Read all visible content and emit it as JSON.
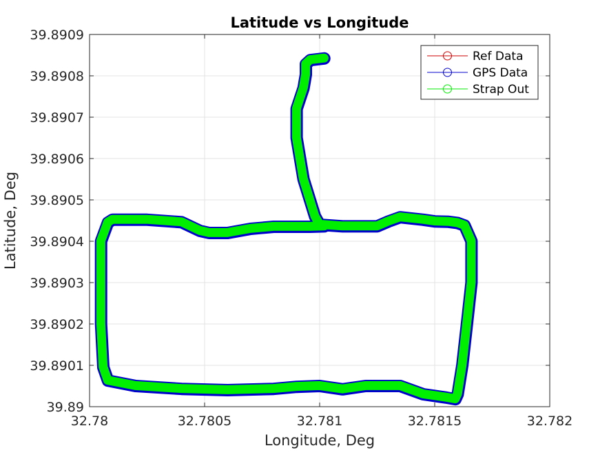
{
  "chart_data": {
    "type": "line",
    "title": "Latitude vs Longitude",
    "xlabel": "Longitude, Deg",
    "ylabel": "Latitude, Deg",
    "xlim": [
      32.78,
      32.782
    ],
    "ylim": [
      39.89,
      39.8909
    ],
    "xticks": [
      32.78,
      32.7805,
      32.781,
      32.7815,
      32.782
    ],
    "xtick_labels": [
      "32.78",
      "32.7805",
      "32.781",
      "32.7815",
      "32.782"
    ],
    "yticks": [
      39.89,
      39.8901,
      39.8902,
      39.8903,
      39.8904,
      39.8905,
      39.8906,
      39.8907,
      39.8908,
      39.8909
    ],
    "ytick_labels": [
      "39.89",
      "39.8901",
      "39.8902",
      "39.8903",
      "39.8904",
      "39.8905",
      "39.8906",
      "39.8907",
      "39.8908",
      "39.8909"
    ],
    "grid": true,
    "legend_position": "top-right",
    "series": [
      {
        "name": "Ref Data",
        "color": "#cc0000",
        "x": [
          32.78102,
          32.78096,
          32.78094,
          32.78094,
          32.78093,
          32.7809,
          32.7809,
          32.78093,
          32.78098,
          32.781,
          32.7811,
          32.78125,
          32.7813,
          32.78135,
          32.78145,
          32.7815,
          32.78156,
          32.7816,
          32.78163,
          32.78166,
          32.78166,
          32.78164,
          32.78162,
          32.7816,
          32.78159,
          32.78155,
          32.78145,
          32.78135,
          32.7812,
          32.7811,
          32.781,
          32.7809,
          32.7808,
          32.7806,
          32.7804,
          32.7802,
          32.78008,
          32.78006,
          32.78005,
          32.78005,
          32.78005,
          32.78008,
          32.7801,
          32.78025,
          32.7804,
          32.78048,
          32.78052,
          32.7806,
          32.7807,
          32.7808,
          32.7809,
          32.78096,
          32.78102
        ],
        "y": [
          39.890842,
          39.890838,
          39.890828,
          39.890803,
          39.89077,
          39.89072,
          39.89065,
          39.89055,
          39.89046,
          39.89044,
          39.890436,
          39.890436,
          39.890448,
          39.890458,
          39.890452,
          39.890448,
          39.890447,
          39.890444,
          39.890438,
          39.8904,
          39.8903,
          39.8902,
          39.8901,
          39.89003,
          39.890018,
          39.890022,
          39.89003,
          39.89005,
          39.89005,
          39.890042,
          39.89005,
          39.890048,
          39.890043,
          39.89004,
          39.890043,
          39.89005,
          39.890063,
          39.890095,
          39.8902,
          39.8903,
          39.8904,
          39.890445,
          39.890452,
          39.890452,
          39.890446,
          39.890425,
          39.89042,
          39.89042,
          39.89043,
          39.890435,
          39.890435,
          39.890435,
          39.890436
        ]
      },
      {
        "name": "GPS Data",
        "color": "#0000cc",
        "x": [
          32.78102,
          32.78096,
          32.78094,
          32.78094,
          32.78093,
          32.7809,
          32.7809,
          32.78093,
          32.78098,
          32.781,
          32.7811,
          32.78125,
          32.7813,
          32.78135,
          32.78145,
          32.7815,
          32.78156,
          32.7816,
          32.78163,
          32.78166,
          32.78166,
          32.78164,
          32.78162,
          32.7816,
          32.78159,
          32.78155,
          32.78145,
          32.78135,
          32.7812,
          32.7811,
          32.781,
          32.7809,
          32.7808,
          32.7806,
          32.7804,
          32.7802,
          32.78008,
          32.78006,
          32.78005,
          32.78005,
          32.78005,
          32.78008,
          32.7801,
          32.78025,
          32.7804,
          32.78048,
          32.78052,
          32.7806,
          32.7807,
          32.7808,
          32.7809,
          32.78096,
          32.78102
        ],
        "y": [
          39.890842,
          39.890838,
          39.890828,
          39.890803,
          39.89077,
          39.89072,
          39.89065,
          39.89055,
          39.89046,
          39.89044,
          39.890436,
          39.890436,
          39.890448,
          39.890458,
          39.890452,
          39.890448,
          39.890447,
          39.890444,
          39.890438,
          39.8904,
          39.8903,
          39.8902,
          39.8901,
          39.89003,
          39.890018,
          39.890022,
          39.89003,
          39.89005,
          39.89005,
          39.890042,
          39.89005,
          39.890048,
          39.890043,
          39.89004,
          39.890043,
          39.89005,
          39.890063,
          39.890095,
          39.8902,
          39.8903,
          39.8904,
          39.890445,
          39.890452,
          39.890452,
          39.890446,
          39.890425,
          39.89042,
          39.89042,
          39.89043,
          39.890435,
          39.890435,
          39.890435,
          39.890436
        ]
      },
      {
        "name": "Strap Out",
        "color": "#00ee00",
        "x": [
          32.78102,
          32.78096,
          32.78094,
          32.78094,
          32.78093,
          32.7809,
          32.7809,
          32.78093,
          32.78098,
          32.781,
          32.7811,
          32.78125,
          32.7813,
          32.78135,
          32.78145,
          32.7815,
          32.78156,
          32.7816,
          32.78163,
          32.78166,
          32.78166,
          32.78164,
          32.78162,
          32.7816,
          32.78159,
          32.78155,
          32.78145,
          32.78135,
          32.7812,
          32.7811,
          32.781,
          32.7809,
          32.7808,
          32.7806,
          32.7804,
          32.7802,
          32.78008,
          32.78006,
          32.78005,
          32.78005,
          32.78005,
          32.78008,
          32.7801,
          32.78025,
          32.7804,
          32.78048,
          32.78052,
          32.7806,
          32.7807,
          32.7808,
          32.7809,
          32.78096,
          32.78102
        ],
        "y": [
          39.890842,
          39.890838,
          39.890828,
          39.890803,
          39.89077,
          39.89072,
          39.89065,
          39.89055,
          39.89046,
          39.89044,
          39.890436,
          39.890436,
          39.890448,
          39.890458,
          39.890452,
          39.890448,
          39.890447,
          39.890444,
          39.890438,
          39.8904,
          39.8903,
          39.8902,
          39.8901,
          39.89003,
          39.890018,
          39.890022,
          39.89003,
          39.89005,
          39.89005,
          39.890042,
          39.89005,
          39.890048,
          39.890043,
          39.89004,
          39.890043,
          39.89005,
          39.890063,
          39.890095,
          39.8902,
          39.8903,
          39.8904,
          39.890445,
          39.890452,
          39.890452,
          39.890446,
          39.890425,
          39.89042,
          39.89042,
          39.89043,
          39.890435,
          39.890435,
          39.890435,
          39.890436
        ]
      }
    ]
  }
}
